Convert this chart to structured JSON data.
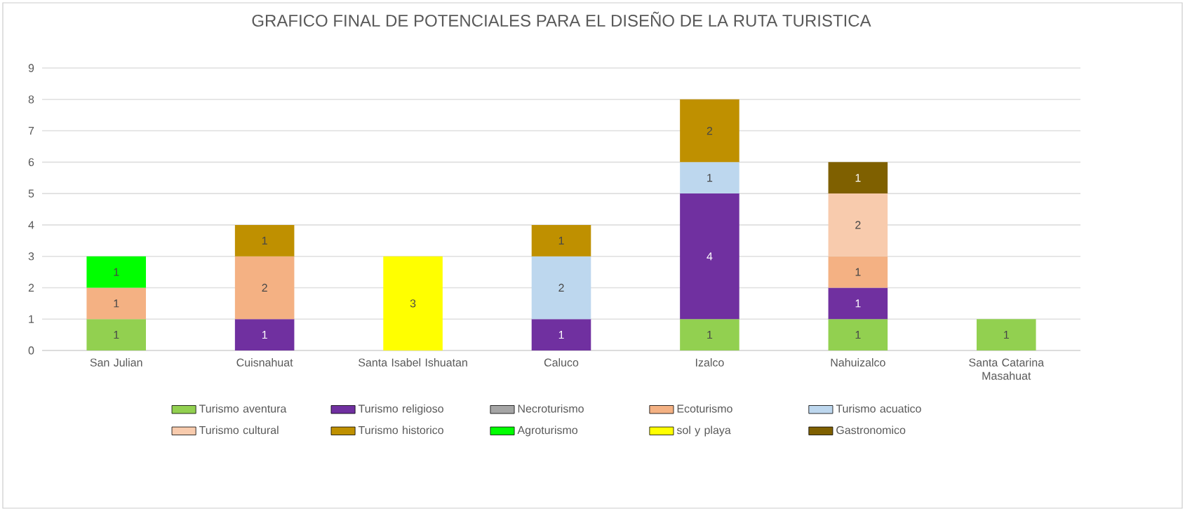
{
  "chart_data": {
    "type": "bar",
    "stacked": true,
    "title": "GRAFICO FINAL DE POTENCIALES PARA EL DISEÑO DE LA RUTA TURISTICA",
    "categories": [
      "San Julian",
      "Cuisnahuat",
      "Santa Isabel Ishuatan",
      "Caluco",
      "Izalco",
      "Nahuizalco",
      "Santa Catarina Masahuat"
    ],
    "series": [
      {
        "name": "Turismo aventura",
        "color": "#92d050",
        "values": [
          1,
          null,
          null,
          null,
          1,
          1,
          1
        ]
      },
      {
        "name": "Turismo  religioso",
        "color": "#7030a0",
        "values": [
          null,
          1,
          null,
          1,
          4,
          1,
          null
        ]
      },
      {
        "name": "Necroturismo",
        "color": "#a5a5a5",
        "values": [
          null,
          null,
          null,
          null,
          null,
          null,
          null
        ]
      },
      {
        "name": "Ecoturismo",
        "color": "#f4b183",
        "values": [
          1,
          2,
          null,
          null,
          null,
          1,
          null
        ]
      },
      {
        "name": "Turismo acuatico",
        "color": "#bdd7ee",
        "values": [
          null,
          null,
          null,
          2,
          1,
          null,
          null
        ]
      },
      {
        "name": "Turismo cultural",
        "color": "#f8cbad",
        "values": [
          null,
          null,
          null,
          null,
          null,
          2,
          null
        ]
      },
      {
        "name": "Turismo historico",
        "color": "#bf9000",
        "values": [
          null,
          1,
          null,
          1,
          2,
          null,
          null
        ]
      },
      {
        "name": "Agroturismo",
        "color": "#00ff00",
        "values": [
          1,
          null,
          null,
          null,
          null,
          null,
          null
        ]
      },
      {
        "name": "sol y playa",
        "color": "#ffff00",
        "values": [
          null,
          null,
          3,
          null,
          null,
          null,
          null
        ]
      },
      {
        "name": "Gastronomico",
        "color": "#7f6000",
        "values": [
          null,
          null,
          null,
          null,
          null,
          1,
          null
        ]
      }
    ],
    "ylim": [
      0,
      9
    ],
    "yticks": [
      0,
      1,
      2,
      3,
      4,
      5,
      6,
      7,
      8,
      9
    ],
    "grid": "y",
    "legend": "bottom",
    "data_labels": true
  }
}
